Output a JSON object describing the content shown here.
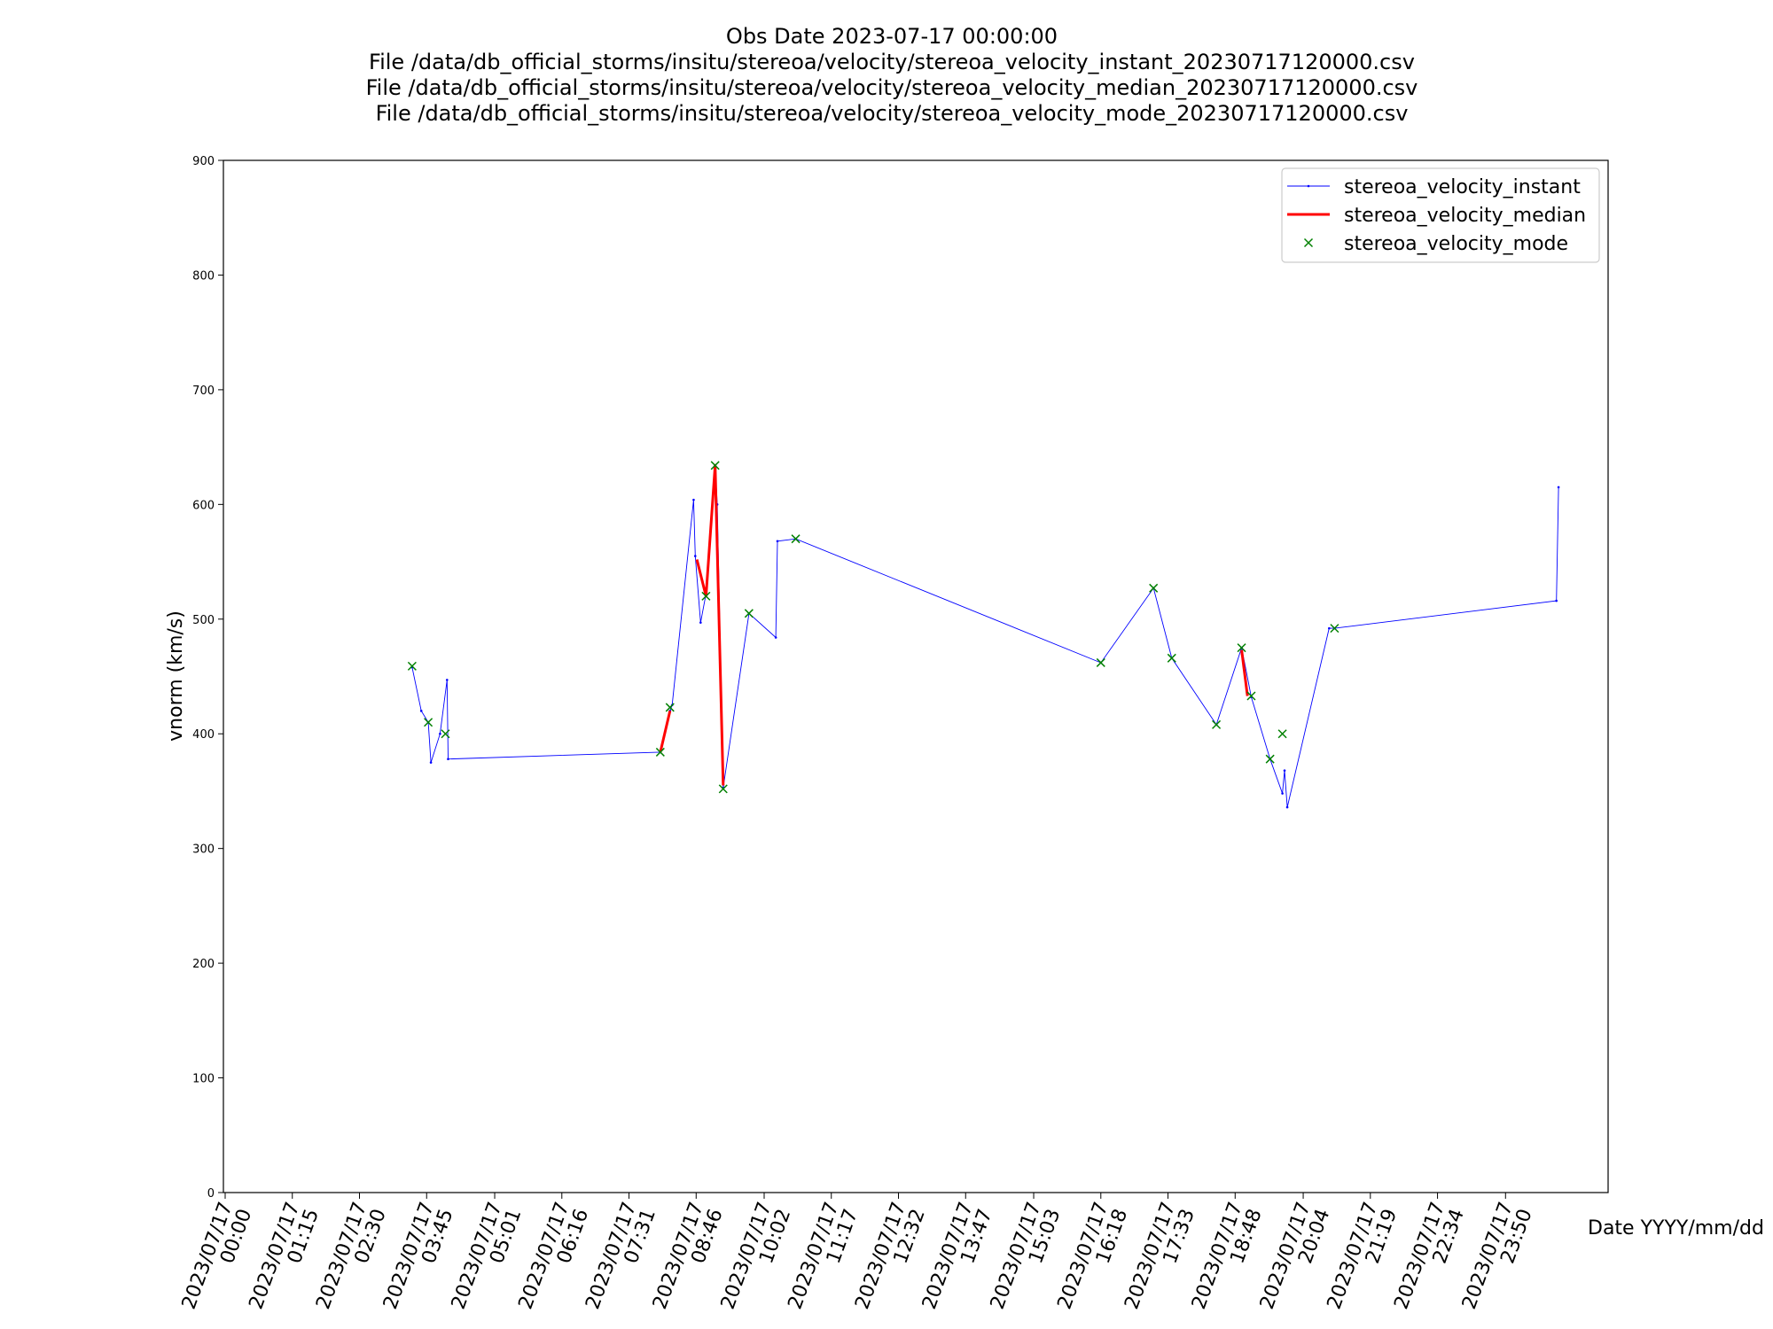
{
  "chart_data": {
    "type": "line",
    "title_lines": [
      "Obs Date 2023-07-17 00:00:00",
      "File /data/db_official_storms/insitu/stereoa/velocity/stereoa_velocity_instant_20230717120000.csv",
      "File /data/db_official_storms/insitu/stereoa/velocity/stereoa_velocity_median_20230717120000.csv",
      "File /data/db_official_storms/insitu/stereoa/velocity/stereoa_velocity_mode_20230717120000.csv"
    ],
    "xlabel": "Date YYYY/mm/dd",
    "ylabel": "vnorm (km/s)",
    "x_unit": "hours since 2023/07/17 00:00",
    "xlim": [
      0,
      26.6
    ],
    "ylim": [
      0,
      900
    ],
    "yticks": [
      0,
      100,
      200,
      300,
      400,
      500,
      600,
      700,
      800,
      900
    ],
    "xticks": [
      {
        "x": 0.0,
        "date": "2023/07/17",
        "time": "00:00"
      },
      {
        "x": 1.25,
        "date": "2023/07/17",
        "time": "01:15"
      },
      {
        "x": 2.5,
        "date": "2023/07/17",
        "time": "02:30"
      },
      {
        "x": 3.75,
        "date": "2023/07/17",
        "time": "03:45"
      },
      {
        "x": 5.017,
        "date": "2023/07/17",
        "time": "05:01"
      },
      {
        "x": 6.267,
        "date": "2023/07/17",
        "time": "06:16"
      },
      {
        "x": 7.517,
        "date": "2023/07/17",
        "time": "07:31"
      },
      {
        "x": 8.767,
        "date": "2023/07/17",
        "time": "08:46"
      },
      {
        "x": 10.033,
        "date": "2023/07/17",
        "time": "10:02"
      },
      {
        "x": 11.283,
        "date": "2023/07/17",
        "time": "11:17"
      },
      {
        "x": 12.533,
        "date": "2023/07/17",
        "time": "12:32"
      },
      {
        "x": 13.783,
        "date": "2023/07/17",
        "time": "13:47"
      },
      {
        "x": 15.05,
        "date": "2023/07/17",
        "time": "15:03"
      },
      {
        "x": 16.3,
        "date": "2023/07/17",
        "time": "16:18"
      },
      {
        "x": 17.55,
        "date": "2023/07/17",
        "time": "17:33"
      },
      {
        "x": 18.8,
        "date": "2023/07/17",
        "time": "18:48"
      },
      {
        "x": 20.067,
        "date": "2023/07/17",
        "time": "20:04"
      },
      {
        "x": 21.317,
        "date": "2023/07/17",
        "time": "21:19"
      },
      {
        "x": 22.567,
        "date": "2023/07/17",
        "time": "22:34"
      },
      {
        "x": 23.833,
        "date": "2023/07/17",
        "time": "23:50"
      }
    ],
    "legend_position": "upper right",
    "grid": false,
    "series": [
      {
        "name": "stereoa_velocity_instant",
        "style": "line",
        "color": "#0000ff",
        "points": [
          [
            3.48,
            458
          ],
          [
            3.65,
            420
          ],
          [
            3.78,
            410
          ],
          [
            3.83,
            375
          ],
          [
            4.0,
            400
          ],
          [
            4.13,
            447
          ],
          [
            4.15,
            378
          ],
          [
            8.1,
            384
          ],
          [
            8.28,
            420
          ],
          [
            8.32,
            425
          ],
          [
            8.72,
            604
          ],
          [
            8.75,
            555
          ],
          [
            8.85,
            497
          ],
          [
            8.95,
            522
          ],
          [
            9.12,
            634
          ],
          [
            9.16,
            600
          ],
          [
            9.27,
            353
          ],
          [
            9.75,
            505
          ],
          [
            10.25,
            484
          ],
          [
            10.28,
            568
          ],
          [
            10.62,
            570
          ],
          [
            16.3,
            462
          ],
          [
            17.28,
            527
          ],
          [
            17.62,
            466
          ],
          [
            18.45,
            408
          ],
          [
            18.92,
            475
          ],
          [
            19.1,
            432
          ],
          [
            19.45,
            378
          ],
          [
            19.68,
            348
          ],
          [
            19.72,
            368
          ],
          [
            19.77,
            336
          ],
          [
            20.55,
            492
          ],
          [
            20.65,
            492
          ],
          [
            24.78,
            516
          ],
          [
            24.82,
            615
          ]
        ]
      },
      {
        "name": "stereoa_velocity_median",
        "style": "line",
        "color": "#ff0000",
        "segments": [
          [
            [
              8.1,
              384
            ],
            [
              8.28,
              420
            ]
          ],
          [
            [
              8.78,
              552
            ],
            [
              8.95,
              520
            ],
            [
              9.12,
              634
            ],
            [
              9.27,
              355
            ]
          ],
          [
            [
              18.92,
              473
            ],
            [
              19.03,
              433
            ]
          ]
        ]
      },
      {
        "name": "stereoa_velocity_mode",
        "style": "marker",
        "marker": "x",
        "color": "#008000",
        "points": [
          [
            3.48,
            459
          ],
          [
            3.78,
            410
          ],
          [
            4.1,
            400
          ],
          [
            8.1,
            384
          ],
          [
            8.28,
            423
          ],
          [
            8.95,
            520
          ],
          [
            9.12,
            634
          ],
          [
            9.27,
            352
          ],
          [
            9.75,
            505
          ],
          [
            10.62,
            570
          ],
          [
            16.3,
            462
          ],
          [
            17.28,
            527
          ],
          [
            17.62,
            466
          ],
          [
            18.45,
            408
          ],
          [
            18.92,
            475
          ],
          [
            19.1,
            433
          ],
          [
            19.45,
            378
          ],
          [
            19.68,
            400
          ],
          [
            20.65,
            492
          ]
        ]
      }
    ]
  }
}
